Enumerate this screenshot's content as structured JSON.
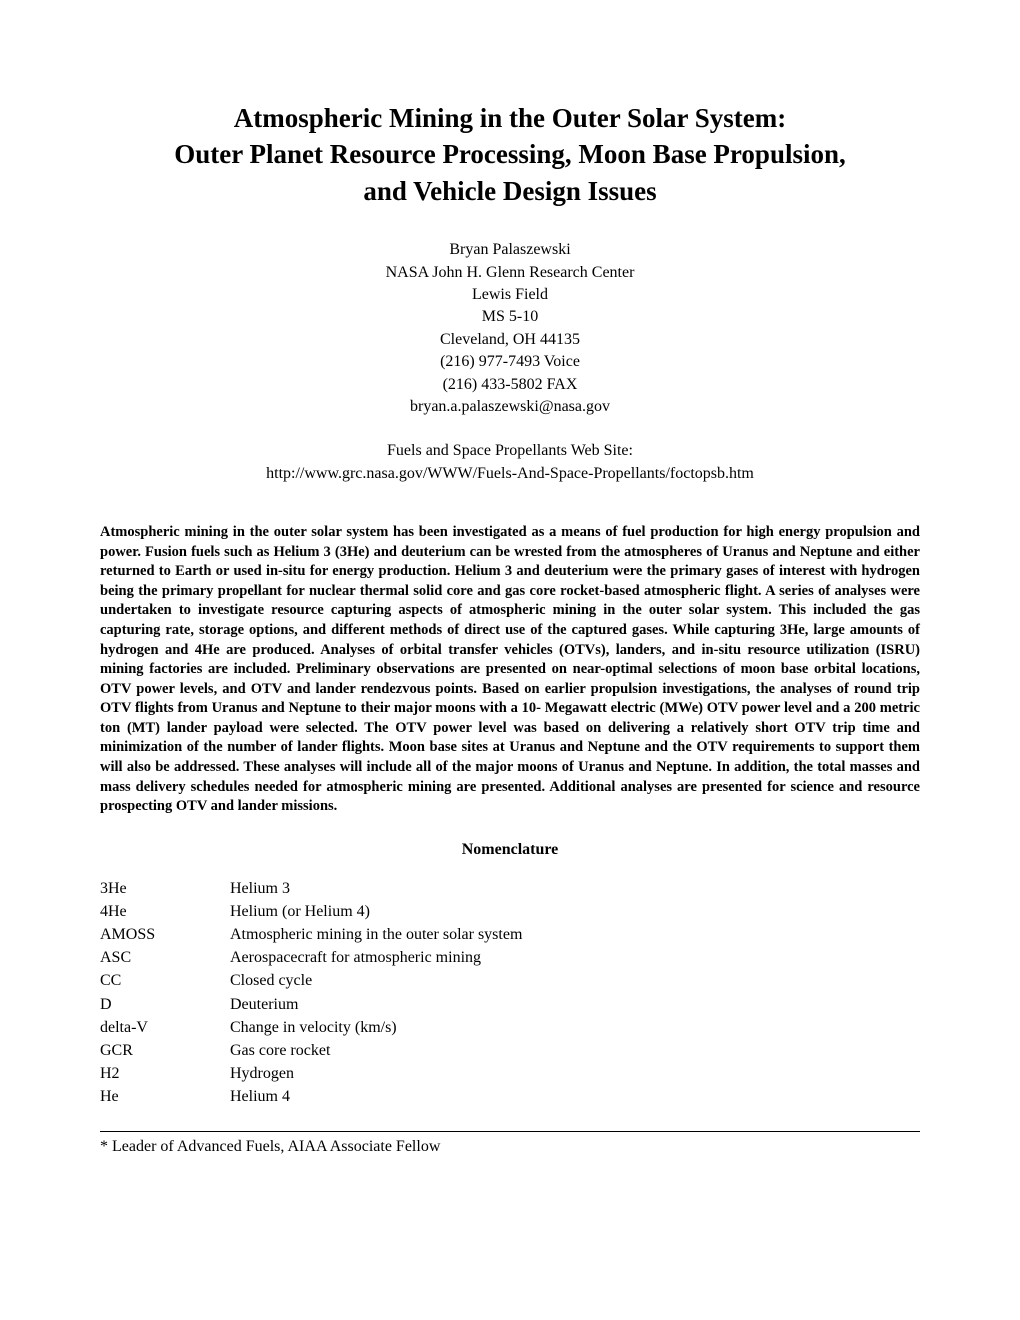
{
  "title_line1": "Atmospheric Mining in the Outer Solar System:",
  "title_line2": "Outer Planet Resource Processing, Moon Base Propulsion,",
  "title_line3": "and Vehicle Design Issues",
  "author": {
    "name": "Bryan Palaszewski",
    "affiliation": "NASA John H. Glenn Research Center",
    "field": "Lewis Field",
    "mailstop": "MS 5-10",
    "city": "Cleveland, OH 44135",
    "voice": "(216) 977-7493  Voice",
    "fax": "(216) 433-5802  FAX",
    "email": "bryan.a.palaszewski@nasa.gov"
  },
  "website": {
    "label": "Fuels and Space Propellants Web Site:",
    "url": "http://www.grc.nasa.gov/WWW/Fuels-And-Space-Propellants/foctopsb.htm"
  },
  "abstract": "Atmospheric mining in the outer solar system has been investigated as a means of fuel production for high energy propulsion and power.  Fusion fuels such as Helium 3 (3He) and deuterium can be wrested from the atmospheres of Uranus and Neptune and either returned to Earth or used in-situ for energy production.   Helium 3 and deuterium were the primary gases of interest with hydrogen being the primary propellant for nuclear thermal solid core and gas core rocket-based atmospheric flight.  A series of analyses were undertaken to investigate resource capturing aspects of atmospheric mining in the outer solar system.  This included the gas capturing rate, storage options, and different methods of direct use of the captured gases.  While capturing 3He, large amounts of hydrogen and 4He are produced.  Analyses of orbital transfer vehicles (OTVs), landers, and in-situ resource utilization (ISRU) mining factories are included.  Preliminary observations are presented on near-optimal selections of moon base orbital locations, OTV power levels, and OTV and lander rendezvous points.  Based on earlier propulsion investigations, the analyses of round trip OTV flights from Uranus and Neptune to their major moons with a 10- Megawatt electric (MWe) OTV power level and a 200 metric ton (MT) lander payload were selected.   The OTV power level was based on delivering a relatively short OTV trip time and minimization of the number of lander flights.  Moon base sites at Uranus and Neptune and the OTV requirements to support them will also be addressed.   These analyses will include all of the major moons of Uranus and Neptune.   In addition, the total masses and mass delivery schedules needed for atmospheric mining are presented.  Additional analyses are presented for science and resource prospecting OTV and lander missions.",
  "nomenclature_heading": "Nomenclature",
  "nomenclature": [
    {
      "abbr": "3He",
      "def": "Helium 3"
    },
    {
      "abbr": "4He",
      "def": "Helium (or Helium 4)"
    },
    {
      "abbr": "AMOSS",
      "def": "Atmospheric mining in the outer solar system"
    },
    {
      "abbr": "ASC",
      "def": "Aerospacecraft for atmospheric mining"
    },
    {
      "abbr": "CC",
      "def": "Closed cycle"
    },
    {
      "abbr": "D",
      "def": "Deuterium"
    },
    {
      "abbr": "delta-V",
      "def": "Change in velocity (km/s)"
    },
    {
      "abbr": "GCR",
      "def": "Gas core rocket"
    },
    {
      "abbr": "H2",
      "def": "Hydrogen"
    },
    {
      "abbr": "He",
      "def": "Helium 4"
    }
  ],
  "footnote": "* Leader of Advanced Fuels, AIAA Associate Fellow"
}
